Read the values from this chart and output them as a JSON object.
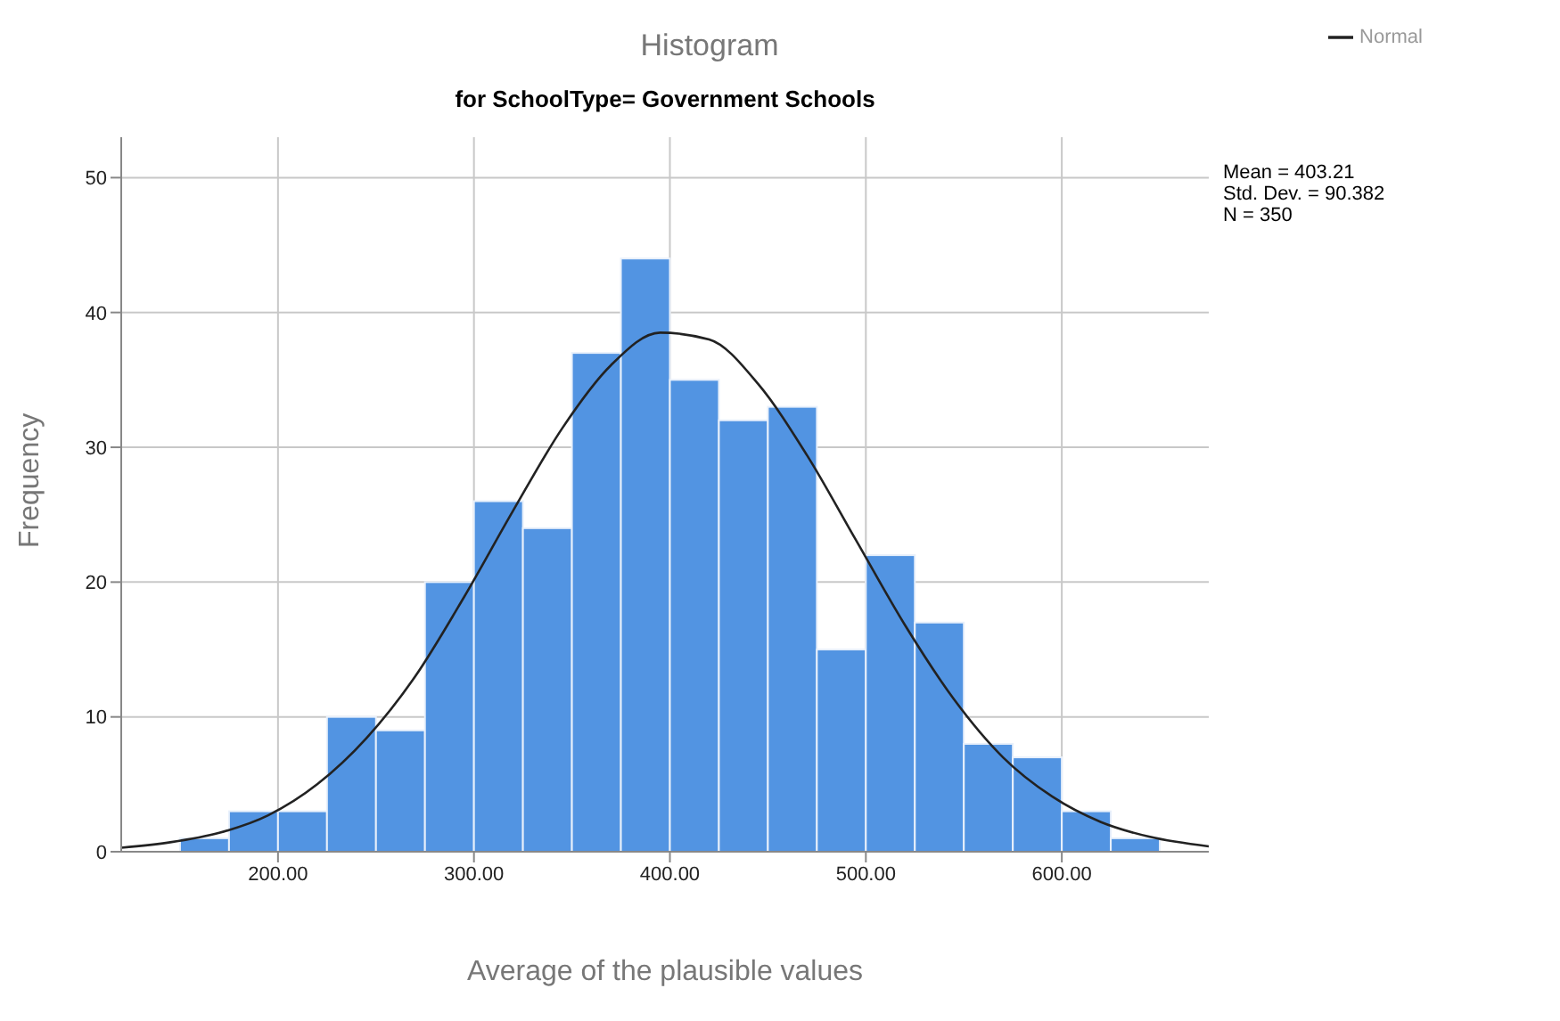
{
  "chart_data": {
    "type": "histogram",
    "title": "Histogram",
    "subtitle": "for SchoolType= Government Schools",
    "xlabel": "Average of the plausible values",
    "ylabel": "Frequency",
    "bins": [
      150,
      175,
      200,
      225,
      250,
      275,
      300,
      325,
      350,
      375,
      400,
      425,
      450,
      475,
      500,
      525,
      550,
      575,
      600,
      625,
      650
    ],
    "values": [
      1,
      3,
      3,
      10,
      9,
      20,
      26,
      24,
      37,
      44,
      35,
      32,
      33,
      15,
      22,
      17,
      8,
      7,
      3,
      1
    ],
    "color": "#5294e2",
    "series": [
      {
        "name": "Normal",
        "type": "line",
        "color": "#222222",
        "x": [
          120,
          145,
          170,
          195,
          220,
          245,
          270,
          295,
          320,
          345,
          370,
          395,
          420,
          445,
          470,
          495,
          520,
          545,
          570,
          595,
          620,
          645,
          675
        ],
        "values": [
          0.3,
          0.7,
          1.4,
          2.7,
          5.0,
          8.4,
          13.0,
          18.9,
          25.3,
          31.4,
          36.1,
          38.5,
          38.0,
          34.7,
          29.4,
          23.1,
          16.8,
          11.3,
          7.0,
          4.1,
          2.2,
          1.1,
          0.4
        ]
      }
    ],
    "xlim": [
      120,
      675
    ],
    "ylim": [
      0,
      53
    ],
    "xticks": [
      {
        "value": 200,
        "label": "200.00"
      },
      {
        "value": 300,
        "label": "300.00"
      },
      {
        "value": 400,
        "label": "400.00"
      },
      {
        "value": 500,
        "label": "500.00"
      },
      {
        "value": 600,
        "label": "600.00"
      }
    ],
    "yticks": [
      0,
      10,
      20,
      30,
      40,
      50
    ],
    "grid": true,
    "legend": "top right",
    "marker": "none",
    "annotations": [
      "Mean = 403.21",
      "Std. Dev. = 90.382",
      "N = 350"
    ]
  }
}
